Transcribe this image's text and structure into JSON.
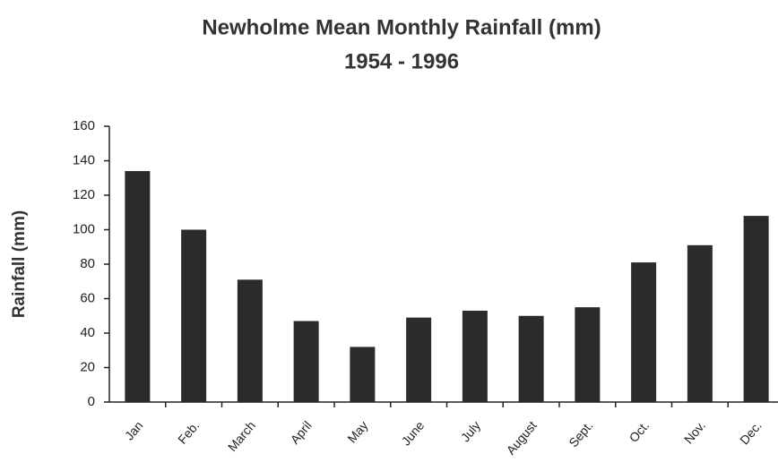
{
  "chart_data": {
    "type": "bar",
    "title": "Newholme Mean Monthly Rainfall (mm)",
    "subtitle": "1954 - 1996",
    "y_label": "Rainfall (mm)",
    "categories": [
      "Jan",
      "Feb.",
      "March",
      "April",
      "May",
      "June",
      "July",
      "August",
      "Sept.",
      "Oct.",
      "Nov.",
      "Dec."
    ],
    "values": [
      134,
      100,
      71,
      47,
      32,
      49,
      53,
      50,
      55,
      81,
      91,
      108
    ],
    "color": "#2b2b2b",
    "ylim": [
      0,
      160
    ],
    "yticks": [
      0,
      20,
      40,
      60,
      80,
      100,
      120,
      140,
      160
    ],
    "grid": false
  }
}
